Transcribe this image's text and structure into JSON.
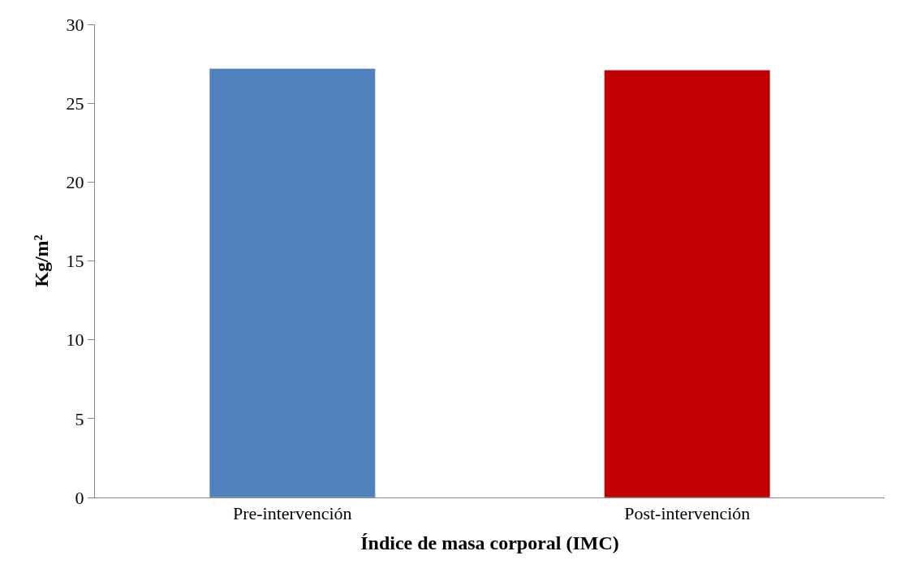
{
  "chart_data": {
    "type": "bar",
    "xlabel": "Índice de masa corporal (IMC)",
    "ylabel": "Kg/m²",
    "categories": [
      "Pre-intervención",
      "Post-intervención"
    ],
    "values": [
      27.2,
      27.1
    ],
    "colors": [
      "#4f81bd",
      "#c00000"
    ],
    "ylim": [
      0,
      30
    ],
    "yticks": [
      0,
      5,
      10,
      15,
      20,
      25,
      30
    ]
  }
}
